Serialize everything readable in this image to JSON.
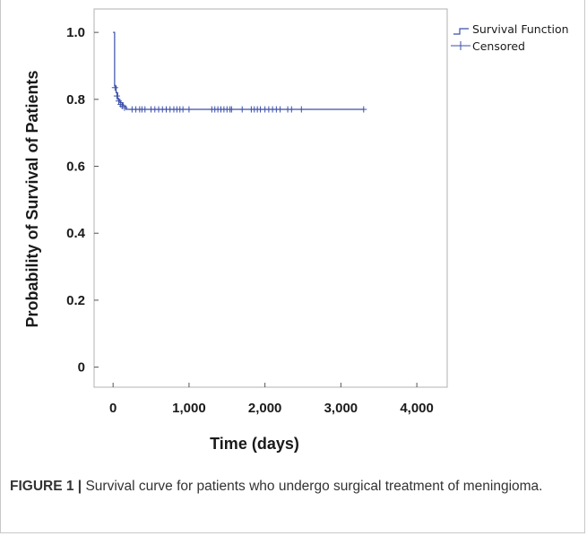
{
  "caption": {
    "label": "FIGURE 1 |",
    "text": "Survival curve for patients who undergo surgical treatment of meningioma."
  },
  "chart_data": {
    "type": "line",
    "xlabel": "Time (days)",
    "ylabel": "Probability of Survival of Patients",
    "xlim": [
      -250,
      4400
    ],
    "ylim": [
      -0.06,
      1.07
    ],
    "x_ticks": [
      0,
      1000,
      2000,
      3000,
      4000
    ],
    "x_tick_labels": [
      "0",
      "1,000",
      "2,000",
      "3,000",
      "4,000"
    ],
    "y_ticks": [
      0,
      0.2,
      0.4,
      0.6,
      0.8,
      1.0
    ],
    "y_tick_labels": [
      "0",
      "0.2",
      "0.4",
      "0.6",
      "0.8",
      "1.0"
    ],
    "grid": false,
    "legend_position": "top-right-outside",
    "line_color": "#3b4fa8",
    "series": [
      {
        "name": "Survival Function",
        "kind": "step",
        "x": [
          0,
          20,
          40,
          60,
          90,
          130,
          170,
          3300
        ],
        "y": [
          1.0,
          0.84,
          0.82,
          0.8,
          0.79,
          0.78,
          0.77,
          0.77
        ]
      },
      {
        "name": "Censored",
        "kind": "markers",
        "x": [
          25,
          50,
          75,
          100,
          120,
          150,
          250,
          300,
          350,
          380,
          420,
          500,
          550,
          600,
          650,
          700,
          750,
          800,
          840,
          880,
          920,
          1000,
          1300,
          1340,
          1380,
          1420,
          1460,
          1500,
          1540,
          1560,
          1700,
          1820,
          1860,
          1900,
          1940,
          2000,
          2050,
          2100,
          2150,
          2200,
          2300,
          2350,
          2480,
          3300
        ],
        "y": [
          0.835,
          0.81,
          0.795,
          0.785,
          0.78,
          0.775,
          0.77,
          0.77,
          0.77,
          0.77,
          0.77,
          0.77,
          0.77,
          0.77,
          0.77,
          0.77,
          0.77,
          0.77,
          0.77,
          0.77,
          0.77,
          0.77,
          0.77,
          0.77,
          0.77,
          0.77,
          0.77,
          0.77,
          0.77,
          0.77,
          0.77,
          0.77,
          0.77,
          0.77,
          0.77,
          0.77,
          0.77,
          0.77,
          0.77,
          0.77,
          0.77,
          0.77,
          0.77,
          0.77
        ]
      }
    ]
  }
}
